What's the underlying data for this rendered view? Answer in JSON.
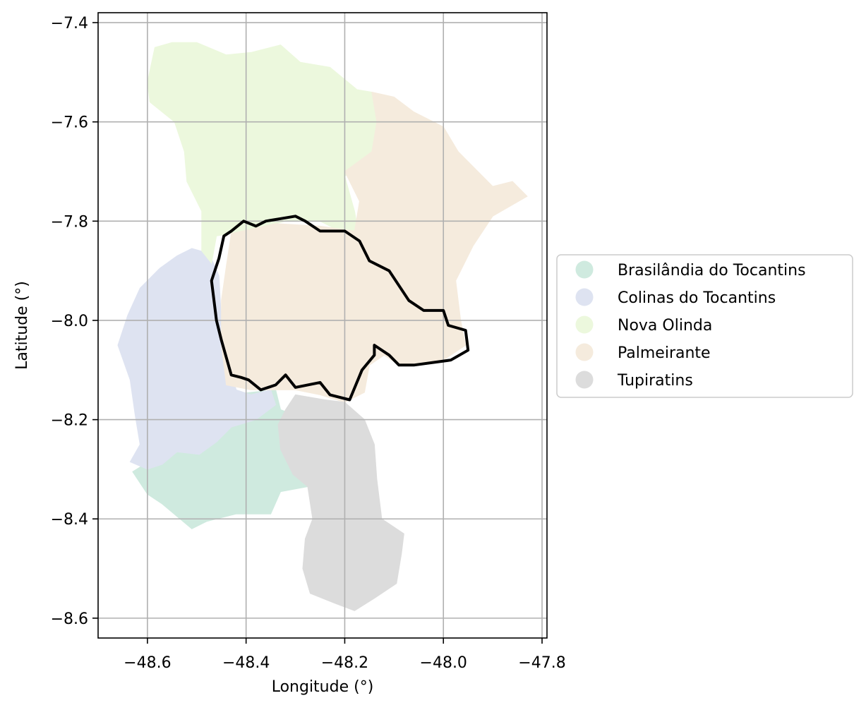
{
  "chart_data": {
    "type": "map",
    "xlabel": "Longitude (°)",
    "ylabel": "Latitude (°)",
    "xlim": [
      -48.7,
      -47.79
    ],
    "ylim": [
      -8.64,
      -7.38
    ],
    "x_ticks": [
      -48.6,
      -48.4,
      -48.2,
      -48.0,
      -47.8
    ],
    "x_tick_labels": [
      "−48.6",
      "−48.4",
      "−48.2",
      "−48.0",
      "−47.8"
    ],
    "y_ticks": [
      -7.4,
      -7.6,
      -7.8,
      -8.0,
      -8.2,
      -8.4,
      -8.6
    ],
    "y_tick_labels": [
      "−7.4",
      "−7.6",
      "−7.8",
      "−8.0",
      "−8.2",
      "−8.4",
      "−8.6"
    ],
    "grid": true,
    "legend_position": "right",
    "regions": [
      {
        "name": "Brasilândia do Tocantins",
        "color": "#cfeadf",
        "polygon": [
          [
            -48.47,
            -8.155
          ],
          [
            -48.39,
            -8.145
          ],
          [
            -48.34,
            -8.14
          ],
          [
            -48.33,
            -8.18
          ],
          [
            -48.29,
            -8.195
          ],
          [
            -48.265,
            -8.22
          ],
          [
            -48.295,
            -8.31
          ],
          [
            -48.275,
            -8.335
          ],
          [
            -48.33,
            -8.345
          ],
          [
            -48.35,
            -8.39
          ],
          [
            -48.42,
            -8.39
          ],
          [
            -48.48,
            -8.405
          ],
          [
            -48.51,
            -8.42
          ],
          [
            -48.57,
            -8.37
          ],
          [
            -48.6,
            -8.35
          ],
          [
            -48.63,
            -8.305
          ],
          [
            -48.59,
            -8.28
          ],
          [
            -48.54,
            -8.255
          ],
          [
            -48.495,
            -8.235
          ],
          [
            -48.47,
            -8.2
          ]
        ]
      },
      {
        "name": "Colinas do Tocantins",
        "color": "#dee3f1",
        "polygon": [
          [
            -48.51,
            -7.855
          ],
          [
            -48.475,
            -7.865
          ],
          [
            -48.455,
            -7.91
          ],
          [
            -48.45,
            -8.0
          ],
          [
            -48.44,
            -8.07
          ],
          [
            -48.42,
            -8.14
          ],
          [
            -48.39,
            -8.15
          ],
          [
            -48.35,
            -8.14
          ],
          [
            -48.34,
            -8.17
          ],
          [
            -48.38,
            -8.2
          ],
          [
            -48.43,
            -8.215
          ],
          [
            -48.46,
            -8.245
          ],
          [
            -48.495,
            -8.27
          ],
          [
            -48.54,
            -8.265
          ],
          [
            -48.57,
            -8.29
          ],
          [
            -48.6,
            -8.3
          ],
          [
            -48.635,
            -8.285
          ],
          [
            -48.615,
            -8.25
          ],
          [
            -48.625,
            -8.19
          ],
          [
            -48.635,
            -8.12
          ],
          [
            -48.66,
            -8.05
          ],
          [
            -48.64,
            -7.99
          ],
          [
            -48.615,
            -7.935
          ],
          [
            -48.575,
            -7.895
          ],
          [
            -48.54,
            -7.87
          ]
        ]
      },
      {
        "name": "Nova Olinda",
        "color": "#ecf8dd",
        "polygon": [
          [
            -48.585,
            -7.45
          ],
          [
            -48.55,
            -7.44
          ],
          [
            -48.5,
            -7.44
          ],
          [
            -48.44,
            -7.465
          ],
          [
            -48.39,
            -7.46
          ],
          [
            -48.33,
            -7.445
          ],
          [
            -48.29,
            -7.48
          ],
          [
            -48.23,
            -7.49
          ],
          [
            -48.175,
            -7.535
          ],
          [
            -48.145,
            -7.54
          ],
          [
            -48.135,
            -7.6
          ],
          [
            -48.145,
            -7.66
          ],
          [
            -48.2,
            -7.71
          ],
          [
            -48.18,
            -7.78
          ],
          [
            -48.17,
            -7.84
          ],
          [
            -48.25,
            -7.8
          ],
          [
            -48.32,
            -7.8
          ],
          [
            -48.38,
            -7.815
          ],
          [
            -48.46,
            -7.83
          ],
          [
            -48.47,
            -7.885
          ],
          [
            -48.49,
            -7.86
          ],
          [
            -48.49,
            -7.78
          ],
          [
            -48.52,
            -7.72
          ],
          [
            -48.525,
            -7.66
          ],
          [
            -48.545,
            -7.6
          ],
          [
            -48.595,
            -7.56
          ],
          [
            -48.6,
            -7.52
          ]
        ]
      },
      {
        "name": "Palmeirante",
        "color": "#f5ebdd",
        "polygon": [
          [
            -48.145,
            -7.54
          ],
          [
            -48.1,
            -7.55
          ],
          [
            -48.06,
            -7.58
          ],
          [
            -48.0,
            -7.61
          ],
          [
            -47.97,
            -7.66
          ],
          [
            -47.9,
            -7.73
          ],
          [
            -47.86,
            -7.72
          ],
          [
            -47.83,
            -7.75
          ],
          [
            -47.9,
            -7.79
          ],
          [
            -47.94,
            -7.85
          ],
          [
            -47.975,
            -7.92
          ],
          [
            -47.965,
            -8.0
          ],
          [
            -47.955,
            -8.05
          ],
          [
            -48.0,
            -8.08
          ],
          [
            -48.06,
            -8.09
          ],
          [
            -48.09,
            -8.09
          ],
          [
            -48.12,
            -8.07
          ],
          [
            -48.15,
            -8.09
          ],
          [
            -48.16,
            -8.145
          ],
          [
            -48.2,
            -8.165
          ],
          [
            -48.25,
            -8.15
          ],
          [
            -48.3,
            -8.14
          ],
          [
            -48.39,
            -8.14
          ],
          [
            -48.44,
            -8.13
          ],
          [
            -48.45,
            -8.05
          ],
          [
            -48.45,
            -7.96
          ],
          [
            -48.44,
            -7.89
          ],
          [
            -48.43,
            -7.825
          ],
          [
            -48.34,
            -7.805
          ],
          [
            -48.25,
            -7.81
          ],
          [
            -48.18,
            -7.82
          ],
          [
            -48.17,
            -7.76
          ],
          [
            -48.2,
            -7.7
          ],
          [
            -48.145,
            -7.66
          ],
          [
            -48.135,
            -7.6
          ]
        ]
      },
      {
        "name": "Tupiratins",
        "color": "#dcdcdc",
        "polygon": [
          [
            -48.3,
            -8.15
          ],
          [
            -48.24,
            -8.16
          ],
          [
            -48.2,
            -8.165
          ],
          [
            -48.16,
            -8.2
          ],
          [
            -48.14,
            -8.25
          ],
          [
            -48.135,
            -8.32
          ],
          [
            -48.125,
            -8.4
          ],
          [
            -48.08,
            -8.43
          ],
          [
            -48.085,
            -8.47
          ],
          [
            -48.095,
            -8.53
          ],
          [
            -48.14,
            -8.56
          ],
          [
            -48.18,
            -8.585
          ],
          [
            -48.22,
            -8.57
          ],
          [
            -48.27,
            -8.55
          ],
          [
            -48.285,
            -8.5
          ],
          [
            -48.28,
            -8.44
          ],
          [
            -48.265,
            -8.4
          ],
          [
            -48.275,
            -8.335
          ],
          [
            -48.305,
            -8.31
          ],
          [
            -48.33,
            -8.26
          ],
          [
            -48.335,
            -8.21
          ],
          [
            -48.32,
            -8.18
          ]
        ]
      }
    ],
    "outline": {
      "color": "#000000",
      "polygon": [
        [
          -48.46,
          -8.0
        ],
        [
          -48.47,
          -7.92
        ],
        [
          -48.455,
          -7.875
        ],
        [
          -48.445,
          -7.83
        ],
        [
          -48.43,
          -7.82
        ],
        [
          -48.405,
          -7.8
        ],
        [
          -48.38,
          -7.81
        ],
        [
          -48.36,
          -7.8
        ],
        [
          -48.33,
          -7.795
        ],
        [
          -48.3,
          -7.79
        ],
        [
          -48.28,
          -7.8
        ],
        [
          -48.25,
          -7.82
        ],
        [
          -48.2,
          -7.82
        ],
        [
          -48.17,
          -7.84
        ],
        [
          -48.15,
          -7.88
        ],
        [
          -48.11,
          -7.9
        ],
        [
          -48.09,
          -7.93
        ],
        [
          -48.07,
          -7.96
        ],
        [
          -48.04,
          -7.98
        ],
        [
          -48.0,
          -7.98
        ],
        [
          -47.99,
          -8.01
        ],
        [
          -47.955,
          -8.02
        ],
        [
          -47.95,
          -8.06
        ],
        [
          -47.985,
          -8.08
        ],
        [
          -48.06,
          -8.09
        ],
        [
          -48.09,
          -8.09
        ],
        [
          -48.11,
          -8.07
        ],
        [
          -48.125,
          -8.06
        ],
        [
          -48.14,
          -8.05
        ],
        [
          -48.14,
          -8.07
        ],
        [
          -48.165,
          -8.1
        ],
        [
          -48.19,
          -8.16
        ],
        [
          -48.23,
          -8.15
        ],
        [
          -48.25,
          -8.125
        ],
        [
          -48.3,
          -8.135
        ],
        [
          -48.32,
          -8.11
        ],
        [
          -48.34,
          -8.13
        ],
        [
          -48.37,
          -8.14
        ],
        [
          -48.395,
          -8.12
        ],
        [
          -48.41,
          -8.115
        ],
        [
          -48.43,
          -8.11
        ],
        [
          -48.45,
          -8.04
        ],
        [
          -48.46,
          -8.0
        ]
      ]
    }
  },
  "legend": {
    "items": [
      {
        "label": "Brasilândia do Tocantins",
        "color": "#cfeadf"
      },
      {
        "label": "Colinas do Tocantins",
        "color": "#dee3f1"
      },
      {
        "label": "Nova Olinda",
        "color": "#ecf8dd"
      },
      {
        "label": "Palmeirante",
        "color": "#f5ebdd"
      },
      {
        "label": "Tupiratins",
        "color": "#dcdcdc"
      }
    ]
  }
}
